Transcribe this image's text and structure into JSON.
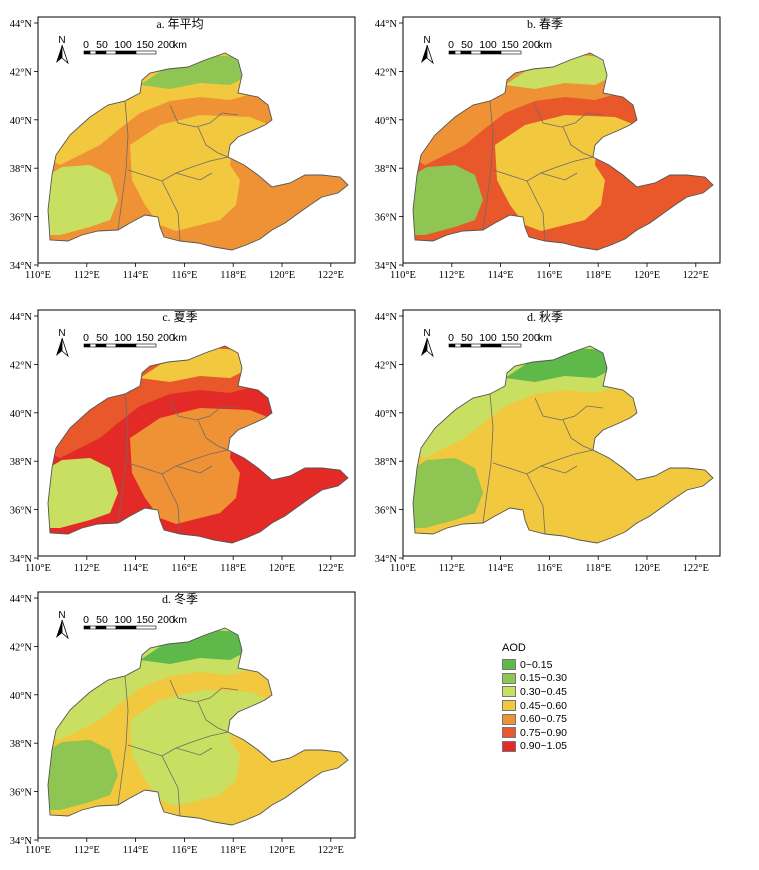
{
  "panels": [
    {
      "title": "a. 年平均",
      "fill_classes": [
        4,
        3,
        1,
        2,
        3
      ]
    },
    {
      "title": "b. 春季",
      "fill_classes": [
        5,
        4,
        2,
        1,
        3
      ]
    },
    {
      "title": "c. 夏季",
      "fill_classes": [
        6,
        5,
        3,
        2,
        4
      ]
    },
    {
      "title": "d. 秋季",
      "fill_classes": [
        3,
        2,
        0,
        1,
        3
      ]
    },
    {
      "title": "d. 冬季",
      "fill_classes": [
        3,
        2,
        0,
        1,
        2
      ]
    }
  ],
  "axes": {
    "lon_labels": [
      "110°E",
      "112°E",
      "114°E",
      "116°E",
      "118°E",
      "120°E",
      "122°E"
    ],
    "lat_labels": [
      "44°N",
      "42°N",
      "40°N",
      "38°N",
      "36°N",
      "34°N"
    ]
  },
  "scale_bar": {
    "labels": [
      "0",
      "50",
      "100",
      "150",
      "200",
      "km"
    ]
  },
  "north_arrow": {
    "label": "N"
  },
  "legend": {
    "title": "AOD",
    "items": [
      {
        "label": "0~0.15",
        "color": "#5fb84a"
      },
      {
        "label": "0.15~0.30",
        "color": "#8fc553"
      },
      {
        "label": "0.30~0.45",
        "color": "#c9df62"
      },
      {
        "label": "0.45~0.60",
        "color": "#f2c83f"
      },
      {
        "label": "0.60~0.75",
        "color": "#ef9235"
      },
      {
        "label": "0.75~0.90",
        "color": "#e8582b"
      },
      {
        "label": "0.90~1.05",
        "color": "#e42a27"
      }
    ]
  }
}
